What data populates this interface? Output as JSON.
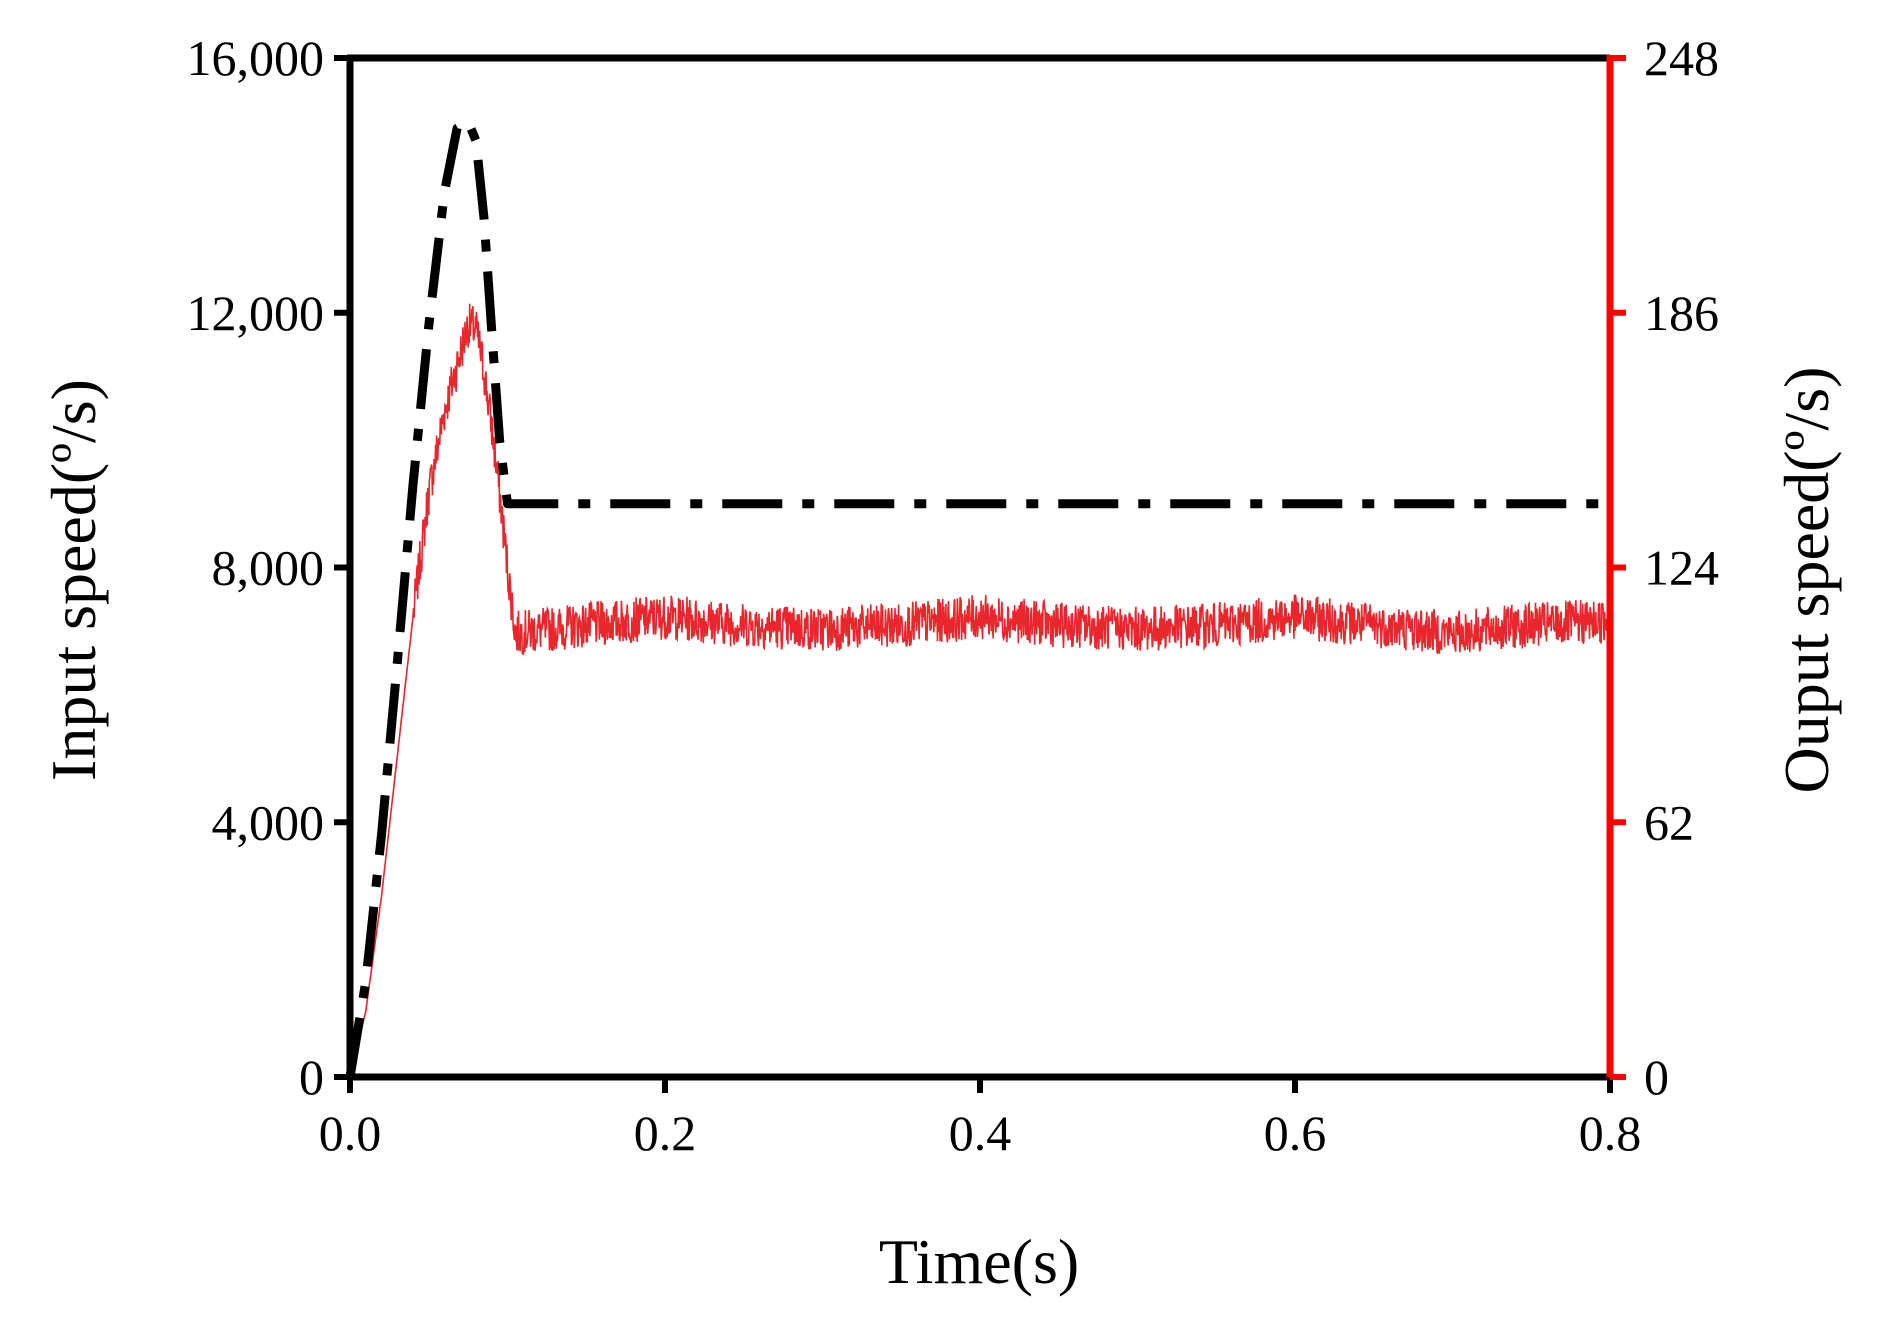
{
  "chart_data": {
    "type": "line",
    "xlabel": "Time(s)",
    "ylabel_left": "Input speed(º/s)",
    "ylabel_right": "Ouput speed(º/s)",
    "xlim": [
      0,
      0.8
    ],
    "ylim_left": [
      0,
      16000
    ],
    "ylim_right": [
      0,
      248
    ],
    "x_ticks": [
      0.0,
      0.2,
      0.4,
      0.6,
      0.8
    ],
    "x_tick_labels": [
      "0.0",
      "0.2",
      "0.4",
      "0.6",
      "0.8"
    ],
    "y_left_ticks": [
      0,
      4000,
      8000,
      12000,
      16000
    ],
    "y_left_tick_labels": [
      "0",
      "4,000",
      "8,000",
      "12,000",
      "16,000"
    ],
    "y_right_ticks": [
      0,
      62,
      124,
      186,
      248
    ],
    "y_right_tick_labels": [
      "0",
      "62",
      "124",
      "186",
      "248"
    ],
    "grid": false,
    "legend": "none",
    "colors": {
      "input": "#000000",
      "output": "#e8262b",
      "right_axis": "#ff0000"
    },
    "series": [
      {
        "axis": "left",
        "style": "dash-dot",
        "x": [
          0.0,
          0.01,
          0.02,
          0.03,
          0.04,
          0.05,
          0.06,
          0.068,
          0.075,
          0.08,
          0.085,
          0.09,
          0.095,
          0.1,
          0.8
        ],
        "values": [
          0,
          1500,
          3800,
          6500,
          9300,
          11800,
          13900,
          14900,
          15000,
          14700,
          13500,
          11700,
          10000,
          9000,
          9000
        ]
      },
      {
        "axis": "right",
        "style": "noisy-solid",
        "x": [
          0.0,
          0.01,
          0.02,
          0.03,
          0.04,
          0.05,
          0.06,
          0.07,
          0.075,
          0.08,
          0.085,
          0.09,
          0.095,
          0.1,
          0.105,
          0.15,
          0.2,
          0.25,
          0.3,
          0.35,
          0.4,
          0.45,
          0.5,
          0.55,
          0.6,
          0.65,
          0.7,
          0.75,
          0.8
        ],
        "values": [
          0,
          16,
          44,
          78,
          112,
          142,
          162,
          176,
          183,
          182,
          172,
          158,
          142,
          124,
          108,
          110,
          112,
          110,
          109,
          110,
          112,
          110,
          109,
          110,
          112,
          110,
          108,
          110,
          111
        ]
      }
    ]
  }
}
